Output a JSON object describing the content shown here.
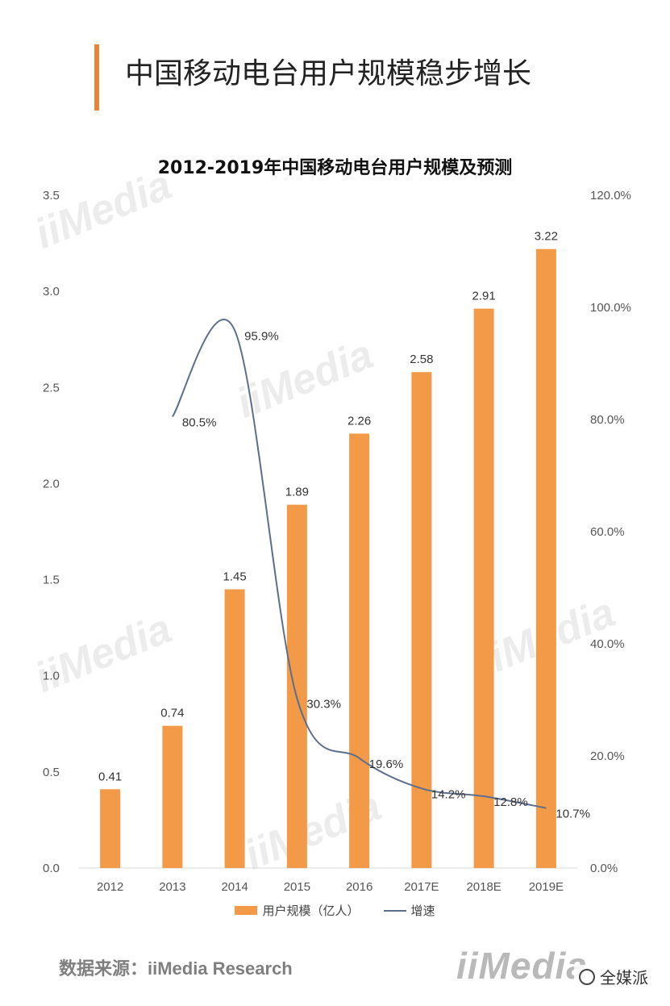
{
  "header": {
    "title": "中国移动电台用户规模稳步增长"
  },
  "colors": {
    "accent": "#e8833a",
    "bar": "#f29a48",
    "line": "#5b6f8c"
  },
  "chart_data": {
    "type": "bar",
    "title": "2012-2019年中国移动电台用户规模及预测",
    "categories": [
      "2012",
      "2013",
      "2014",
      "2015",
      "2016",
      "2017E",
      "2018E",
      "2019E"
    ],
    "series": [
      {
        "name": "用户规模（亿人）",
        "kind": "bar",
        "axis": "left",
        "values": [
          0.41,
          0.74,
          1.45,
          1.89,
          2.26,
          2.58,
          2.91,
          3.22
        ],
        "labels": [
          "0.41",
          "0.74",
          "1.45",
          "1.89",
          "2.26",
          "2.58",
          "2.91",
          "3.22"
        ]
      },
      {
        "name": "增速",
        "kind": "line",
        "axis": "right",
        "values": [
          null,
          80.5,
          95.9,
          30.3,
          19.6,
          14.2,
          12.8,
          10.7
        ],
        "labels": [
          "",
          "80.5%",
          "95.9%",
          "30.3%",
          "19.6%",
          "14.2%",
          "12.8%",
          "10.7%"
        ]
      }
    ],
    "y_left": {
      "range": [
        0,
        3.5
      ],
      "ticks": [
        "0.0",
        "0.5",
        "1.0",
        "1.5",
        "2.0",
        "2.5",
        "3.0",
        "3.5"
      ]
    },
    "y_right": {
      "range": [
        0,
        120
      ],
      "ticks": [
        "0.0%",
        "20.0%",
        "40.0%",
        "60.0%",
        "80.0%",
        "100.0%",
        "120.0%"
      ]
    },
    "grid": false,
    "legend_position": "bottom"
  },
  "footer": {
    "source": "数据来源：iiMedia Research",
    "logo_text": "iiMedia",
    "wechat_name": "全媒派"
  }
}
